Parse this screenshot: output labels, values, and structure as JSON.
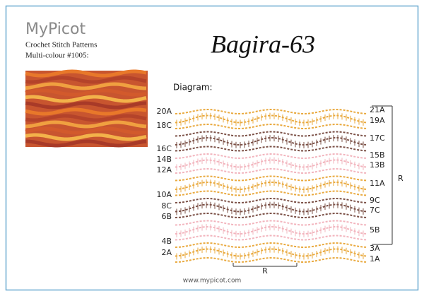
{
  "header": {
    "brand": "MyPicot",
    "subtitle": "Crochet Stitch Patterns",
    "colour": "Multi-colour #1005:"
  },
  "title": "Bagira-63",
  "diagram": {
    "label": "Diagram:",
    "left_rows": [
      "20A",
      "18C",
      "16C",
      "14B",
      "12A",
      "10A",
      "8C",
      "6B",
      "4B",
      "2A"
    ],
    "right_rows": [
      "21A",
      "19A",
      "17C",
      "15B",
      "13B",
      "11A",
      "9C",
      "7C",
      "5B",
      "3A",
      "1A"
    ],
    "repeat_side": "R",
    "repeat_bottom": "R"
  },
  "footer": "www.mypicot.com"
}
